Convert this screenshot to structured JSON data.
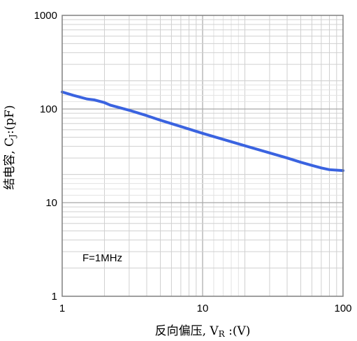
{
  "chart_data": {
    "type": "line",
    "x_scale": "log",
    "y_scale": "log",
    "xlim": [
      1,
      100
    ],
    "ylim": [
      1,
      1000
    ],
    "grid": true,
    "xlabel": {
      "prefix": "反向偏压, V",
      "sub": "R",
      "suffix": " :(V)"
    },
    "ylabel": {
      "prefix": "结电容, C",
      "sub": "J",
      "suffix": ":(pF)"
    },
    "x_ticks": [
      {
        "value": 1,
        "label": "1"
      },
      {
        "value": 10,
        "label": "10"
      },
      {
        "value": 100,
        "label": "100"
      }
    ],
    "y_ticks": [
      {
        "value": 1,
        "label": "1"
      },
      {
        "value": 10,
        "label": "10"
      },
      {
        "value": 100,
        "label": "100"
      },
      {
        "value": 1000,
        "label": "1000"
      }
    ],
    "annotation": "F=1MHz",
    "series": [
      {
        "color": "#3a63e0",
        "x": [
          1,
          1.2,
          1.5,
          1.7,
          2,
          2.2,
          3,
          4,
          5,
          7,
          10,
          15,
          20,
          30,
          40,
          50,
          60,
          70,
          80,
          100
        ],
        "y": [
          152,
          140,
          128,
          125,
          117,
          110,
          97,
          85,
          76,
          65,
          55,
          46,
          40.5,
          34,
          30,
          27,
          25,
          23.5,
          22.5,
          22
        ]
      }
    ]
  }
}
